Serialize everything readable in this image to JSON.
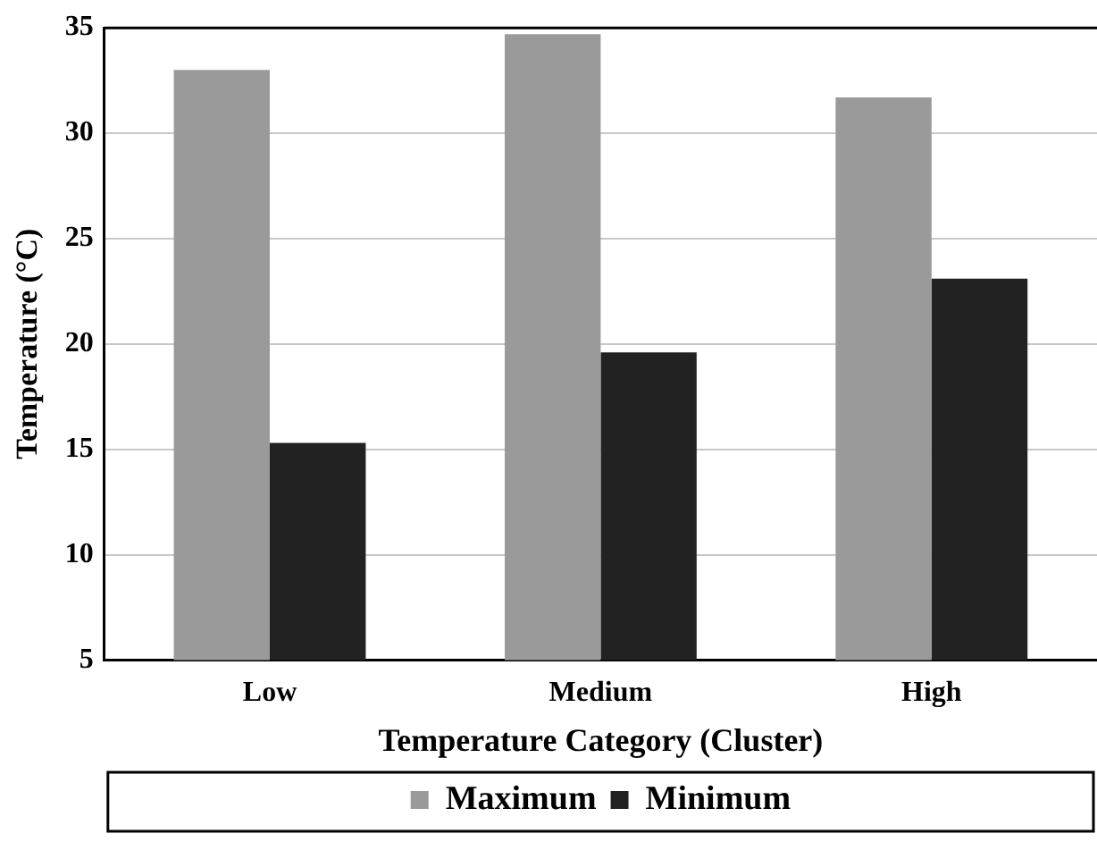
{
  "chart_data": {
    "type": "bar",
    "xlabel": "Temperature Category (Cluster)",
    "ylabel": "Temperature (°C)",
    "categories": [
      "Low",
      "Medium",
      "High"
    ],
    "series": [
      {
        "name": "Maximum",
        "color": "#9a9a9a",
        "values": [
          33.0,
          34.7,
          31.7
        ]
      },
      {
        "name": "Minimum",
        "color": "#222222",
        "values": [
          15.3,
          19.6,
          23.1
        ]
      }
    ],
    "ylim": [
      5,
      35
    ],
    "yticks": [
      5,
      10,
      15,
      20,
      25,
      30,
      35
    ],
    "grid": "y",
    "legend": "bottom"
  }
}
